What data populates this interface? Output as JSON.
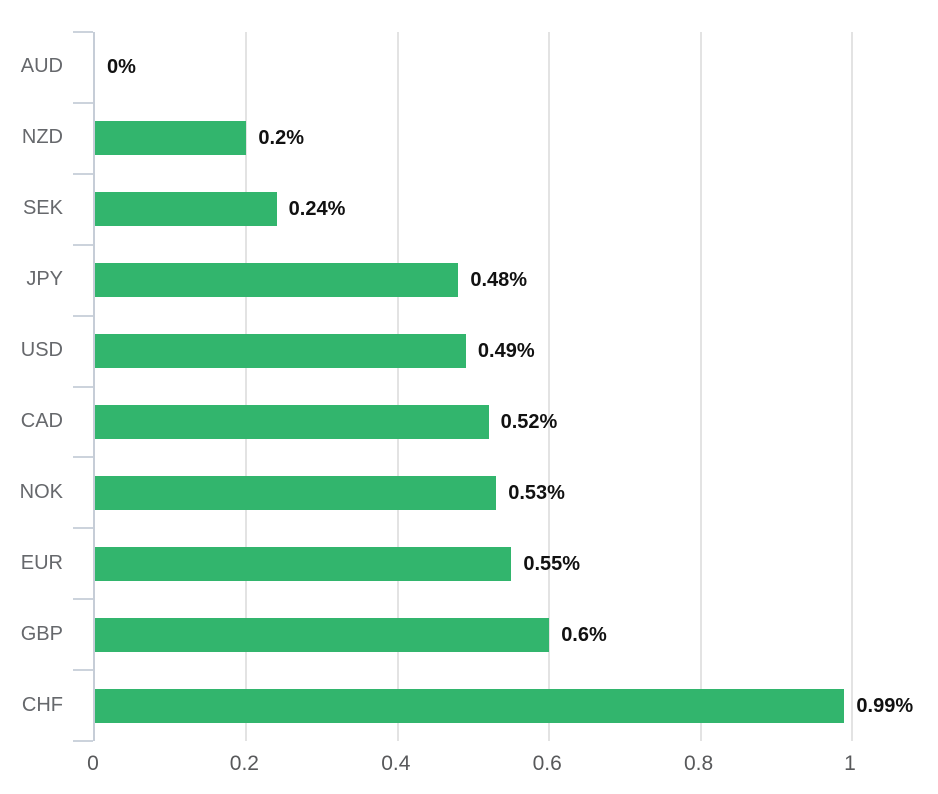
{
  "chart_data": {
    "type": "bar",
    "orientation": "horizontal",
    "title": "",
    "xlabel": "",
    "ylabel": "",
    "categories": [
      "AUD",
      "NZD",
      "SEK",
      "JPY",
      "USD",
      "CAD",
      "NOK",
      "EUR",
      "GBP",
      "CHF"
    ],
    "values": [
      0,
      0.2,
      0.24,
      0.48,
      0.49,
      0.52,
      0.53,
      0.55,
      0.6,
      0.99
    ],
    "value_labels": [
      "0%",
      "0.2%",
      "0.24%",
      "0.48%",
      "0.49%",
      "0.52%",
      "0.53%",
      "0.55%",
      "0.6%",
      "0.99%"
    ],
    "x_ticks": [
      {
        "label": "0",
        "value": 0
      },
      {
        "label": "0.2",
        "value": 0.2
      },
      {
        "label": "0.4",
        "value": 0.4
      },
      {
        "label": "0.6",
        "value": 0.6
      },
      {
        "label": "0.8",
        "value": 0.8
      },
      {
        "label": "1",
        "value": 1
      }
    ],
    "xlim": [
      0,
      1
    ],
    "grid": true,
    "legend": "none",
    "colors": {
      "bar": "#32b56d",
      "axis": "#c6cdd7",
      "gridline": "#e3e3e3",
      "category_label": "#66686c",
      "tick_label": "#58595b",
      "value_label": "#111111",
      "background": "#ffffff"
    }
  }
}
